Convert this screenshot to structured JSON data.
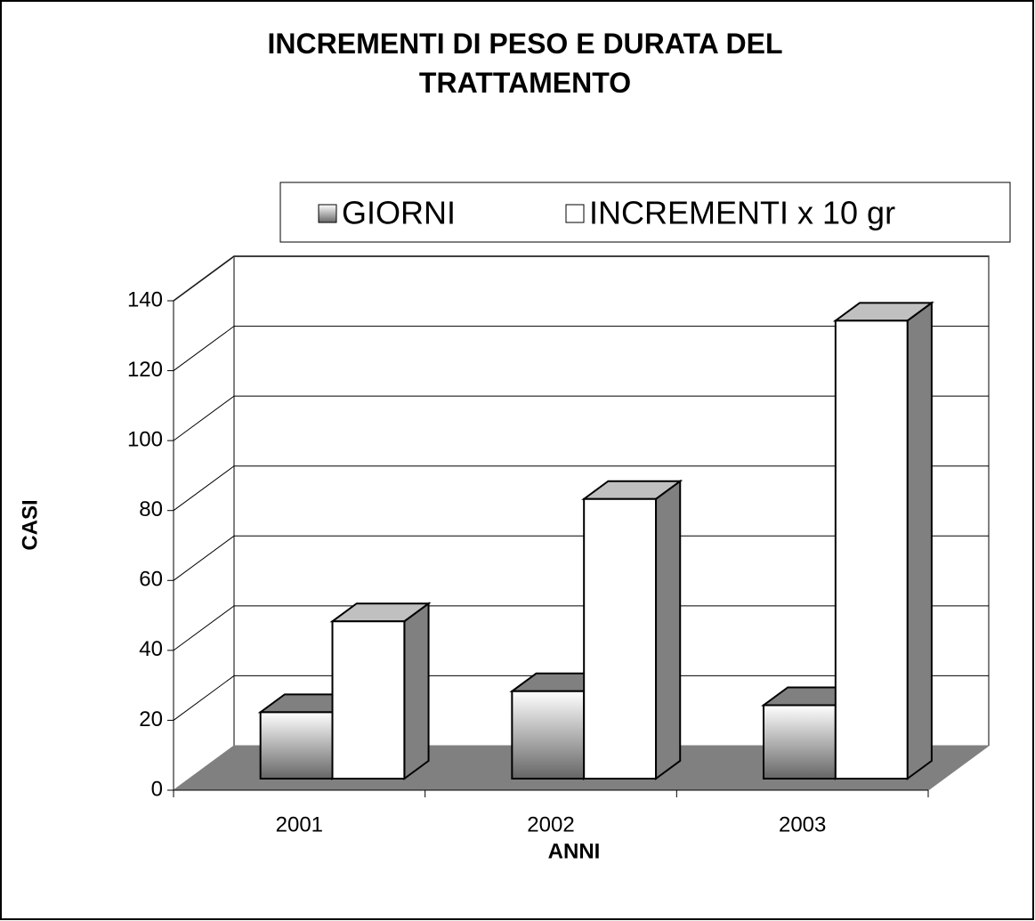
{
  "chart_data": {
    "type": "bar3d",
    "title": "INCREMENTI DI PESO E DURATA DEL TRATTAMENTO",
    "x_label": "ANNI",
    "y_label": "CASI",
    "categories": [
      "2001",
      "2002",
      "2003"
    ],
    "series": [
      {
        "name": "GIORNI",
        "color": "#808080",
        "values": [
          19,
          25,
          21
        ]
      },
      {
        "name": "INCREMENTI x 10 gr",
        "color": "#ffffff",
        "values": [
          45,
          80,
          131
        ]
      }
    ],
    "ylim": [
      0,
      140
    ],
    "yticks": [
      0,
      20,
      40,
      60,
      80,
      100,
      120,
      140
    ],
    "grid": true,
    "legend": "top"
  }
}
